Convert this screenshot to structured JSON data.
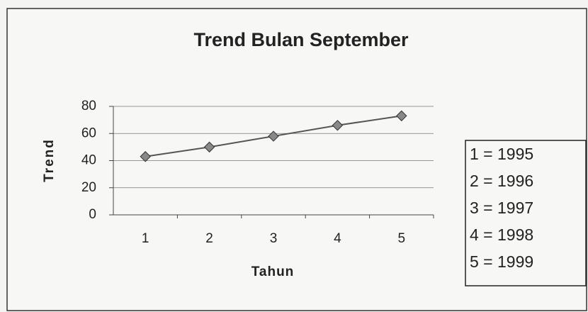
{
  "chart_data": {
    "type": "line",
    "title": "Trend Bulan September",
    "x_label": "Tahun",
    "y_label": "Trend",
    "categories": [
      "1",
      "2",
      "3",
      "4",
      "5"
    ],
    "series": [
      {
        "name": "Trend",
        "color": "#555555",
        "values": [
          43,
          50,
          58,
          66,
          73
        ]
      }
    ],
    "ylim": [
      0,
      80
    ],
    "yticks": [
      0,
      20,
      40,
      60,
      80
    ],
    "grid": true,
    "annotations": [
      "1 = 1995",
      "2 = 1996",
      "3 = 1997",
      "4 = 1998",
      "5 = 1999"
    ]
  }
}
